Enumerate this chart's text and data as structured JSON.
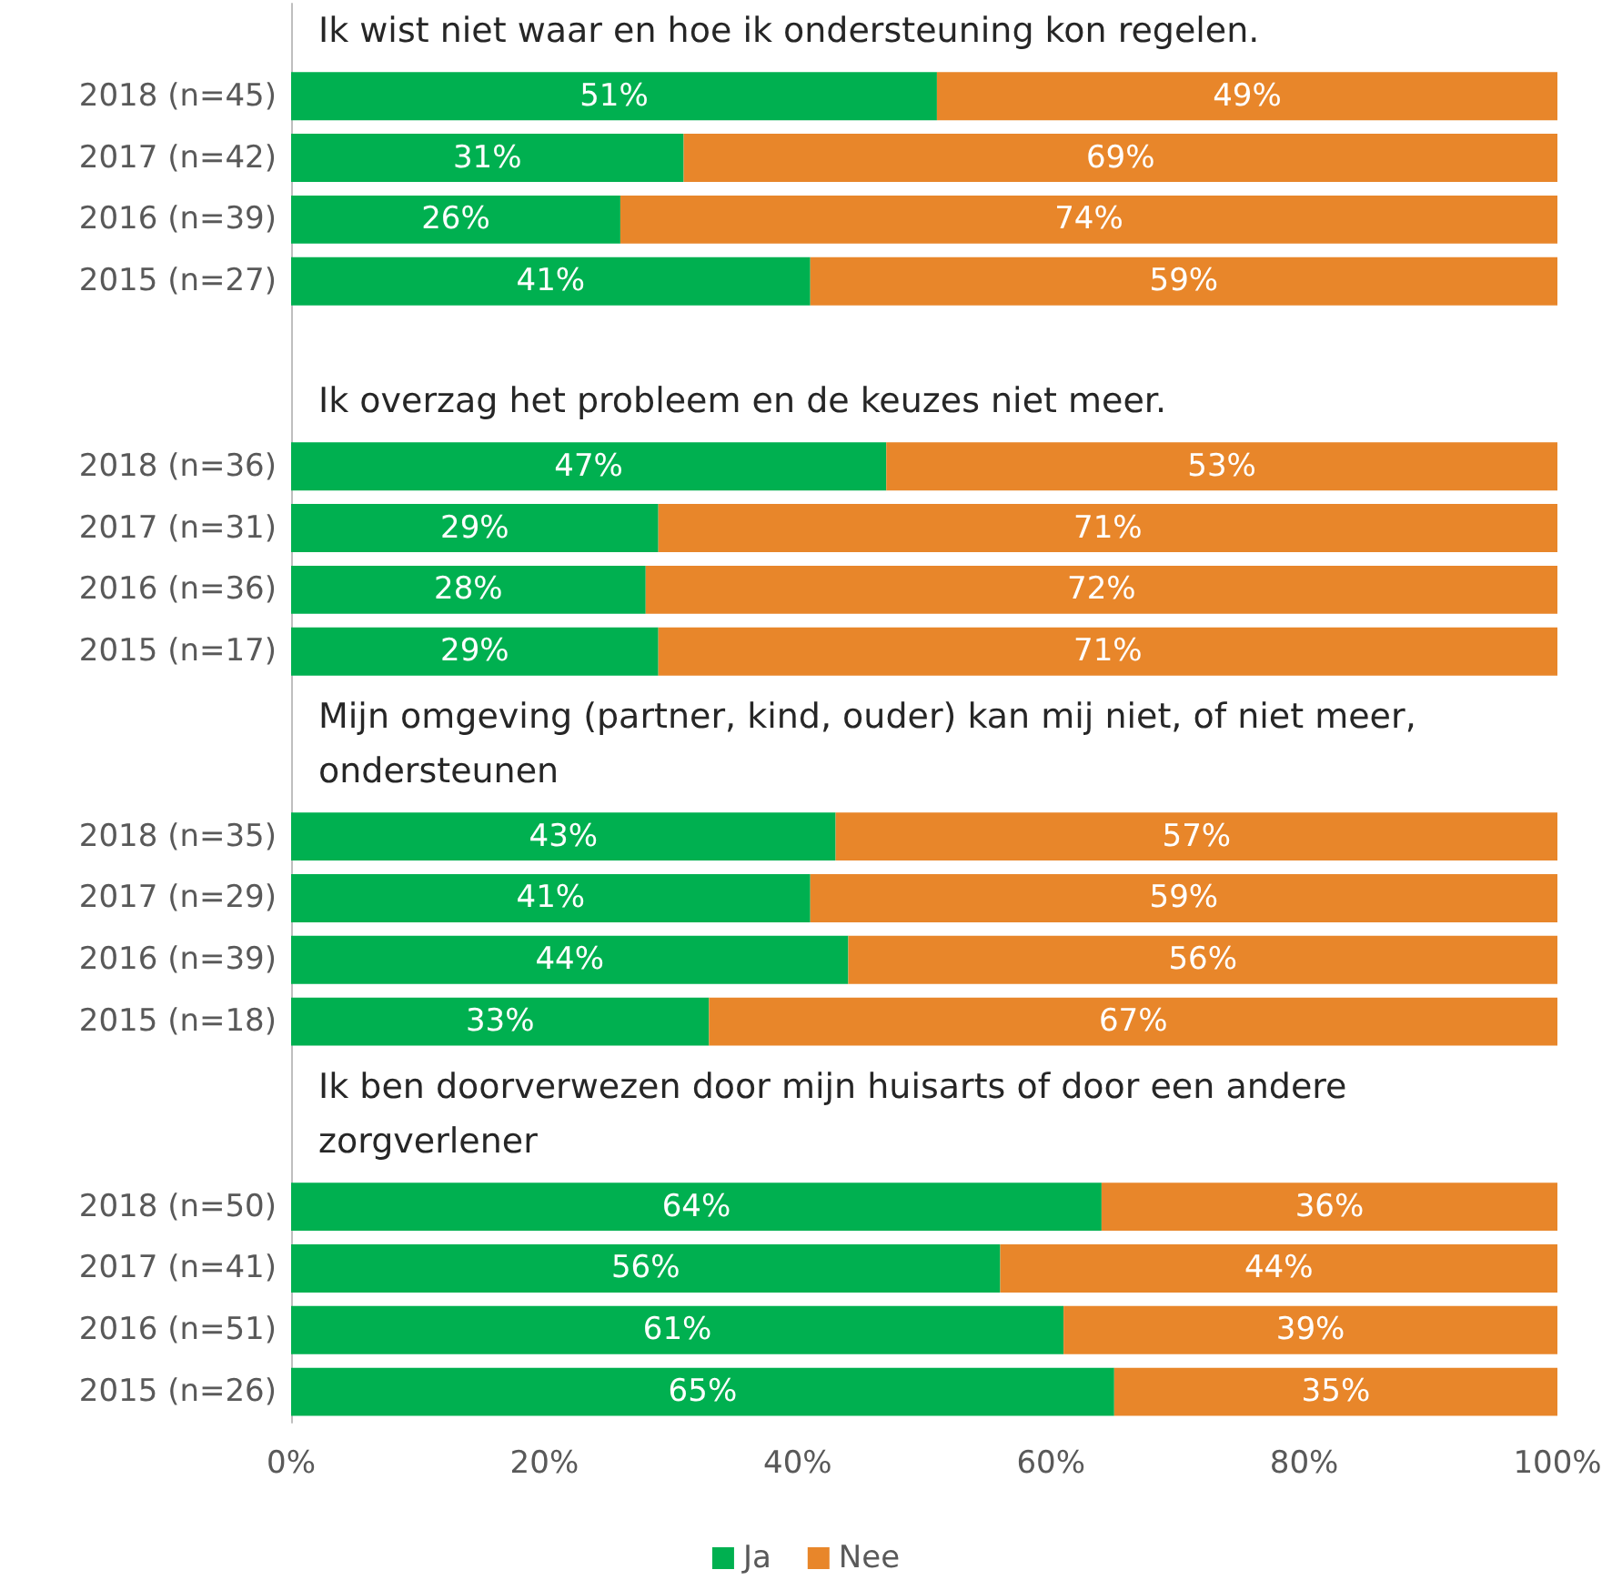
{
  "chart_data": {
    "type": "bar",
    "orientation": "horizontal",
    "stacked": true,
    "legend": "bottom",
    "categories": [
      null,
      "2018 (n=45)",
      "2017 (n=42)",
      "2016 (n=39)",
      "2015 (n=27)",
      null,
      null,
      "2018 (n=36)",
      "2017 (n=31)",
      "2016 (n=36)",
      "2015 (n=17)",
      null,
      null,
      "2018 (n=35)",
      "2017 (n=29)",
      "2016 (n=39)",
      "2015 (n=18)",
      null,
      null,
      "2018 (n=50)",
      "2017 (n=41)",
      "2016 (n=51)",
      "2015 (n=26)"
    ],
    "series": [
      {
        "name": "Ja",
        "color": "#00b050",
        "values": [
          null,
          51,
          31,
          26,
          41,
          null,
          null,
          47,
          29,
          28,
          29,
          null,
          null,
          43,
          41,
          44,
          33,
          null,
          null,
          64,
          56,
          61,
          65
        ],
        "value_labels": [
          null,
          "51%",
          "31%",
          "26%",
          "41%",
          null,
          null,
          "47%",
          "29%",
          "28%",
          "29%",
          null,
          null,
          "43%",
          "41%",
          "44%",
          "33%",
          null,
          null,
          "64%",
          "56%",
          "61%",
          "65%"
        ]
      },
      {
        "name": "Nee",
        "color": "#e8862a",
        "values": [
          null,
          49,
          69,
          74,
          59,
          null,
          null,
          53,
          71,
          72,
          71,
          null,
          null,
          57,
          59,
          56,
          67,
          null,
          null,
          36,
          44,
          39,
          35
        ],
        "value_labels": [
          null,
          "49%",
          "69%",
          "74%",
          "59%",
          null,
          null,
          "53%",
          "71%",
          "72%",
          "71%",
          null,
          null,
          "57%",
          "59%",
          "56%",
          "67%",
          null,
          null,
          "36%",
          "44%",
          "39%",
          "35%"
        ]
      }
    ],
    "xlim": [
      0,
      100
    ],
    "xticks": [
      {
        "value": 0,
        "label": "0%"
      },
      {
        "value": 20,
        "label": "20%"
      },
      {
        "value": 40,
        "label": "40%"
      },
      {
        "value": 60,
        "label": "60%"
      },
      {
        "value": 80,
        "label": "80%"
      },
      {
        "value": 100,
        "label": "100%"
      }
    ],
    "annotations": [
      "Ik wist niet waar en hoe ik ondersteuning kon regelen.",
      "Ik overzag het probleem en de keuzes niet meer.",
      "Mijn omgeving (partner, kind, ouder) kan mij niet, of niet meer, ondersteunen",
      "Ik ben doorverwezen door mijn huisarts of door een andere zorgverlener"
    ]
  }
}
